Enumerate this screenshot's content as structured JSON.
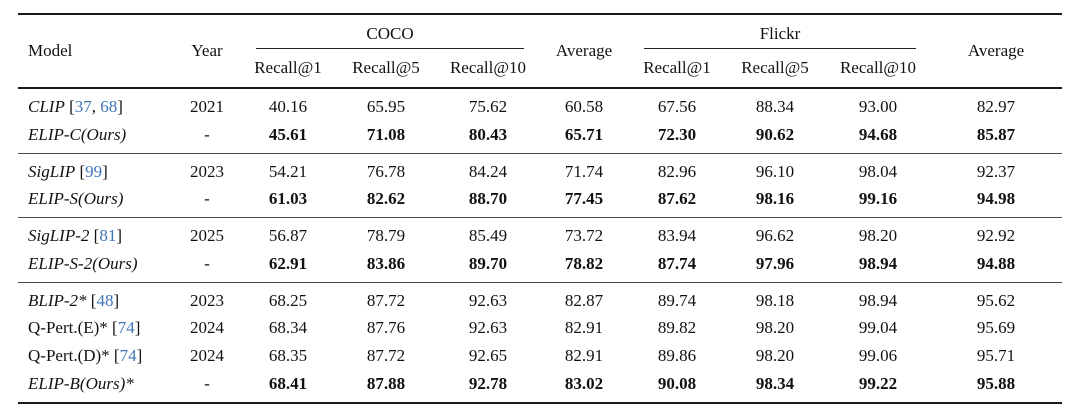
{
  "colors": {
    "citation_link": "#4076b8",
    "text": "#111111",
    "rule": "#1a1a1a"
  },
  "table": {
    "header": {
      "model": "Model",
      "year": "Year",
      "coco_group": "COCO",
      "flickr_group": "Flickr",
      "average": "Average",
      "recall_cols": [
        "Recall@1",
        "Recall@5",
        "Recall@10"
      ]
    },
    "groups": [
      {
        "rows": [
          {
            "model": "CLIP",
            "cites": [
              "37",
              "68"
            ],
            "year": "2021",
            "italic": true,
            "bold": false,
            "values": [
              "40.16",
              "65.95",
              "75.62",
              "60.58",
              "67.56",
              "88.34",
              "93.00",
              "82.97"
            ]
          },
          {
            "model": "ELIP-C(Ours)",
            "cites": [],
            "year": "-",
            "italic": true,
            "bold": true,
            "values": [
              "45.61",
              "71.08",
              "80.43",
              "65.71",
              "72.30",
              "90.62",
              "94.68",
              "85.87"
            ]
          }
        ]
      },
      {
        "rows": [
          {
            "model": "SigLIP",
            "cites": [
              "99"
            ],
            "year": "2023",
            "italic": true,
            "bold": false,
            "values": [
              "54.21",
              "76.78",
              "84.24",
              "71.74",
              "82.96",
              "96.10",
              "98.04",
              "92.37"
            ]
          },
          {
            "model": "ELIP-S(Ours)",
            "cites": [],
            "year": "-",
            "italic": true,
            "bold": true,
            "values": [
              "61.03",
              "82.62",
              "88.70",
              "77.45",
              "87.62",
              "98.16",
              "99.16",
              "94.98"
            ]
          }
        ]
      },
      {
        "rows": [
          {
            "model": "SigLIP-2",
            "cites": [
              "81"
            ],
            "year": "2025",
            "italic": true,
            "bold": false,
            "values": [
              "56.87",
              "78.79",
              "85.49",
              "73.72",
              "83.94",
              "96.62",
              "98.20",
              "92.92"
            ]
          },
          {
            "model": "ELIP-S-2(Ours)",
            "cites": [],
            "year": "-",
            "italic": true,
            "bold": true,
            "values": [
              "62.91",
              "83.86",
              "89.70",
              "78.82",
              "87.74",
              "97.96",
              "98.94",
              "94.88"
            ]
          }
        ]
      },
      {
        "rows": [
          {
            "model": "BLIP-2*",
            "cites": [
              "48"
            ],
            "year": "2023",
            "italic": true,
            "bold": false,
            "values": [
              "68.25",
              "87.72",
              "92.63",
              "82.87",
              "89.74",
              "98.18",
              "98.94",
              "95.62"
            ]
          },
          {
            "model": "Q-Pert.(E)*",
            "cites": [
              "74"
            ],
            "year": "2024",
            "italic": false,
            "bold": false,
            "values": [
              "68.34",
              "87.76",
              "92.63",
              "82.91",
              "89.82",
              "98.20",
              "99.04",
              "95.69"
            ]
          },
          {
            "model": "Q-Pert.(D)*",
            "cites": [
              "74"
            ],
            "year": "2024",
            "italic": false,
            "bold": false,
            "values": [
              "68.35",
              "87.72",
              "92.65",
              "82.91",
              "89.86",
              "98.20",
              "99.06",
              "95.71"
            ]
          },
          {
            "model": "ELIP-B(Ours)*",
            "cites": [],
            "year": "-",
            "italic": true,
            "bold": true,
            "values": [
              "68.41",
              "87.88",
              "92.78",
              "83.02",
              "90.08",
              "98.34",
              "99.22",
              "95.88"
            ]
          }
        ]
      }
    ]
  }
}
